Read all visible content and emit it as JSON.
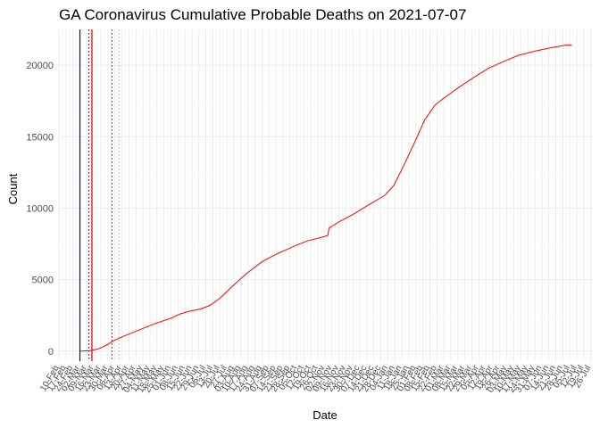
{
  "chart_data": {
    "type": "line",
    "title": "GA Coronavirus Cumulative Probable Deaths on 2021-07-07",
    "xlabel": "Date",
    "ylabel": "Count",
    "x_range": [
      "2020-02-10",
      "2021-07-28"
    ],
    "ylim": [
      -700,
      22500
    ],
    "y_ticks": [
      0,
      5000,
      10000,
      15000,
      20000
    ],
    "grid": true,
    "legend": "none",
    "x_tick_labels": [
      "10-Feb",
      "17-Feb",
      "24-Feb",
      "02-Mar",
      "09-Mar",
      "16-Mar",
      "23-Mar",
      "30-Mar",
      "06-Apr",
      "13-Apr",
      "20-Apr",
      "27-Apr",
      "04-May",
      "11-May",
      "18-May",
      "25-May",
      "01-Jun",
      "08-Jun",
      "15-Jun",
      "22-Jun",
      "29-Jun",
      "06-Jul",
      "13-Jul",
      "20-Jul",
      "27-Jul",
      "03-Aug",
      "10-Aug",
      "17-Aug",
      "24-Aug",
      "31-Aug",
      "07-Sep",
      "14-Sep",
      "21-Sep",
      "28-Sep",
      "05-Oct",
      "12-Oct",
      "19-Oct",
      "26-Oct",
      "02-Nov",
      "09-Nov",
      "16-Nov",
      "23-Nov",
      "30-Nov",
      "07-Dec",
      "14-Dec",
      "21-Dec",
      "28-Dec",
      "04-Jan",
      "11-Jan",
      "18-Jan",
      "25-Jan",
      "01-Feb",
      "08-Feb",
      "15-Feb",
      "22-Feb",
      "01-Mar",
      "08-Mar",
      "15-Mar",
      "22-Mar",
      "29-Mar",
      "05-Apr",
      "12-Apr",
      "19-Apr",
      "26-Apr",
      "03-May",
      "10-May",
      "17-May",
      "24-May",
      "31-May",
      "07-Jun",
      "14-Jun",
      "21-Jun",
      "28-Jun",
      "05-Jul",
      "12-Jul",
      "19-Jul",
      "26-Jul"
    ],
    "vertical_lines": [
      {
        "x": "2020-03-02",
        "color": "#0000cc",
        "style": "solid"
      },
      {
        "x": "2020-03-11",
        "color": "#8b0000",
        "style": "dotted"
      },
      {
        "x": "2020-03-14",
        "color": "#cc0000",
        "style": "solid"
      },
      {
        "x": "2020-04-03",
        "color": "#cc0000",
        "style": "dotted"
      },
      {
        "x": "2020-04-10",
        "color": "#ff9999",
        "style": "dotted"
      }
    ],
    "series": [
      {
        "color": "#ff0000",
        "x": [
          "2020-03-02",
          "2020-03-12",
          "2020-03-20",
          "2020-03-28",
          "2020-04-05",
          "2020-04-15",
          "2020-05-01",
          "2020-05-15",
          "2020-06-01",
          "2020-06-10",
          "2020-06-20",
          "2020-07-01",
          "2020-07-10",
          "2020-07-20",
          "2020-08-01",
          "2020-08-15",
          "2020-09-01",
          "2020-09-15",
          "2020-10-01",
          "2020-10-15",
          "2020-11-01",
          "2020-11-05",
          "2020-11-06",
          "2020-11-15",
          "2020-12-01",
          "2020-12-15",
          "2021-01-01",
          "2021-01-10",
          "2021-01-20",
          "2021-02-01",
          "2021-02-10",
          "2021-02-20",
          "2021-03-01",
          "2021-03-15",
          "2021-04-01",
          "2021-04-15",
          "2021-05-01",
          "2021-05-15",
          "2021-06-01",
          "2021-06-15",
          "2021-07-01",
          "2021-07-07"
        ],
        "y": [
          0,
          30,
          150,
          400,
          750,
          1050,
          1500,
          1900,
          2300,
          2600,
          2800,
          2950,
          3200,
          3700,
          4500,
          5400,
          6300,
          6800,
          7300,
          7700,
          8000,
          8100,
          8600,
          9000,
          9600,
          10200,
          10900,
          11600,
          13000,
          14800,
          16200,
          17200,
          17700,
          18400,
          19200,
          19800,
          20300,
          20700,
          21000,
          21200,
          21400,
          21400
        ]
      }
    ]
  }
}
